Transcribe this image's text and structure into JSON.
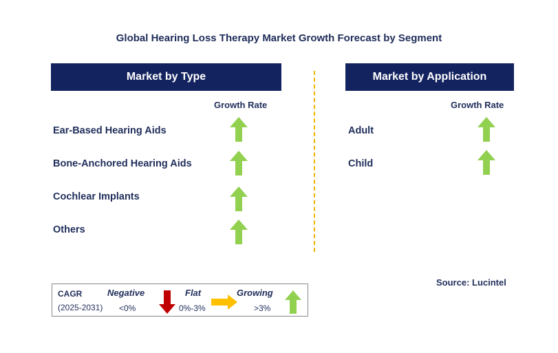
{
  "title": "Global Hearing Loss Therapy Market Growth Forecast by Segment",
  "type_panel": {
    "header": "Market by Type",
    "column_label": "Growth Rate",
    "items": [
      {
        "label": "Ear-Based Hearing Aids",
        "trend": "growing"
      },
      {
        "label": "Bone-Anchored Hearing Aids",
        "trend": "growing"
      },
      {
        "label": "Cochlear Implants",
        "trend": "growing"
      },
      {
        "label": "Others",
        "trend": "growing"
      }
    ]
  },
  "application_panel": {
    "header": "Market by Application",
    "column_label": "Growth Rate",
    "items": [
      {
        "label": "Adult",
        "trend": "growing"
      },
      {
        "label": "Child",
        "trend": "growing"
      }
    ]
  },
  "source": "Source: Lucintel",
  "legend": {
    "cagr_label": "CAGR",
    "period": "(2025-2031)",
    "negative": {
      "label": "Negative",
      "range": "<0%",
      "color": "#c00000"
    },
    "flat": {
      "label": "Flat",
      "range": "0%-3%",
      "color": "#ffc000"
    },
    "growing": {
      "label": "Growing",
      "range": ">3%",
      "color": "#92d050"
    }
  },
  "colors": {
    "header_bg": "#13235f",
    "divider": "#f0b400",
    "up_arrow": "#92d050"
  }
}
